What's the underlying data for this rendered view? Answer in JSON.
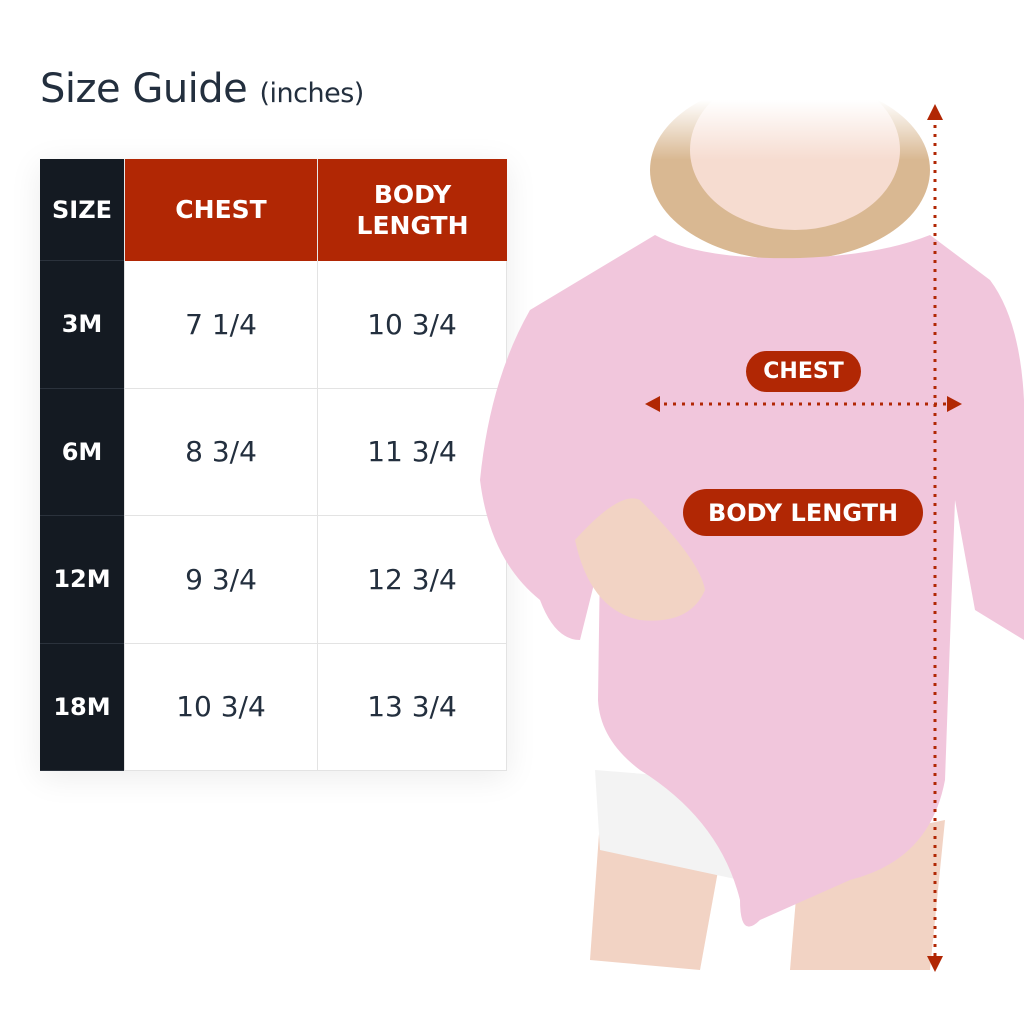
{
  "title": {
    "main": "Size Guide",
    "unit": "(inches)"
  },
  "table": {
    "headers": {
      "size": "SIZE",
      "chest": "CHEST",
      "body_length": "BODY LENGTH"
    },
    "rows": [
      {
        "size": "3M",
        "chest": "7 1/4",
        "body_length": "10 3/4"
      },
      {
        "size": "6M",
        "chest": "8 3/4",
        "body_length": "11 3/4"
      },
      {
        "size": "12M",
        "chest": "9 3/4",
        "body_length": "12 3/4"
      },
      {
        "size": "18M",
        "chest": "10 3/4",
        "body_length": "13 3/4"
      }
    ]
  },
  "diagram": {
    "chest_label": "CHEST",
    "body_length_label": "BODY LENGTH"
  },
  "colors": {
    "accent": "#b12704",
    "dark": "#141a22",
    "text": "#232f3e",
    "garment": "#f1c6dc"
  }
}
